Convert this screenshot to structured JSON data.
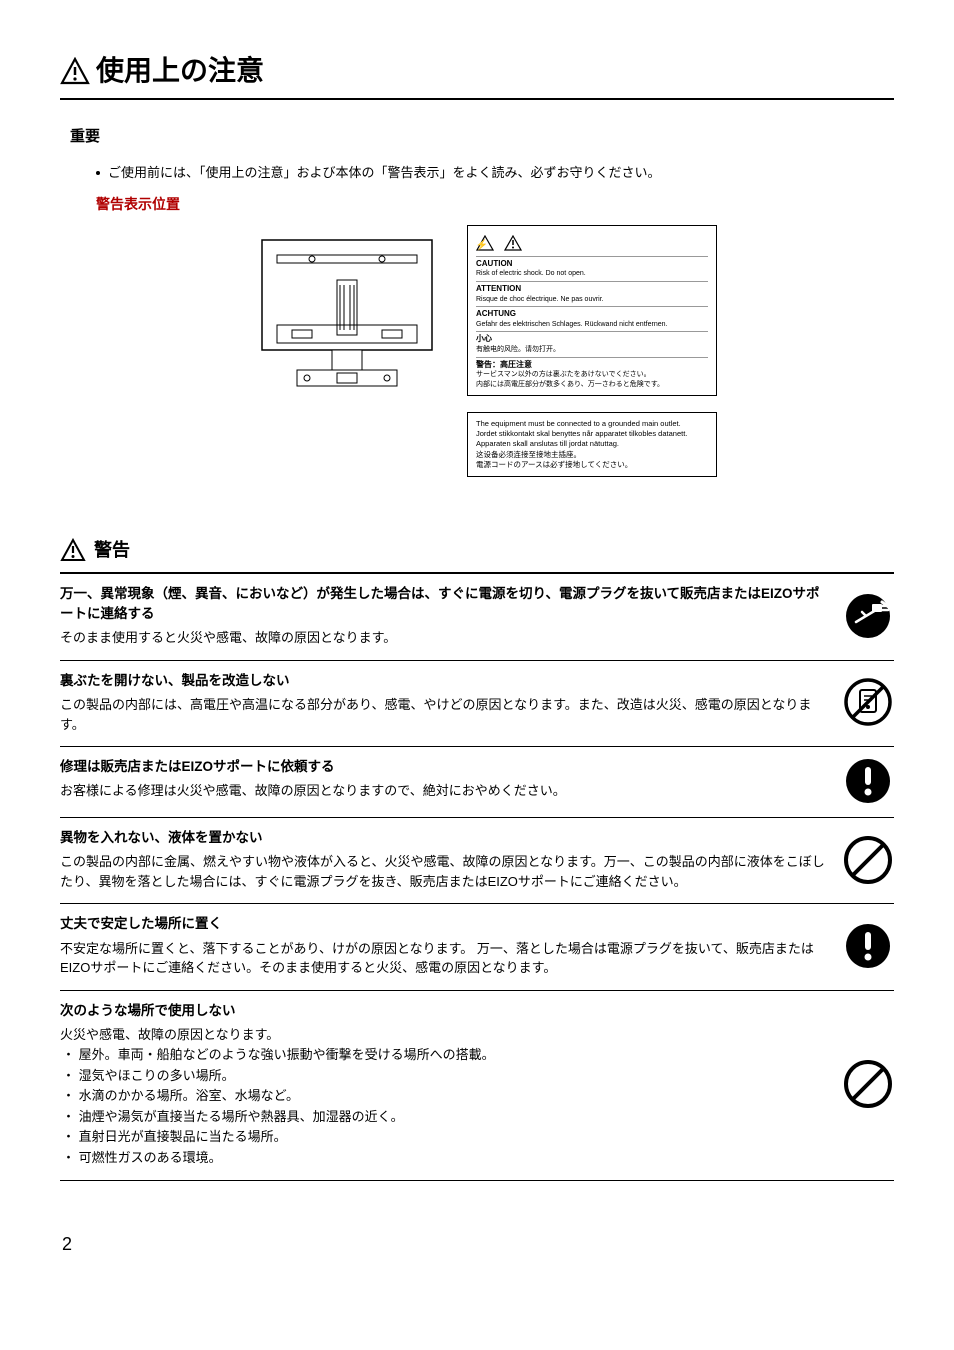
{
  "pageTitle": "使用上の注意",
  "importantHeading": "重要",
  "preReadLine": "ご使用前には、「使用上の注意」および本体の「警告表示」をよく読み、必ずお守りください。",
  "warningPosLabel": "警告表示位置",
  "cautionBox": {
    "caution": "CAUTION",
    "cautionSub": "Risk of electric shock. Do not open.",
    "attention": "ATTENTION",
    "attentionSub": "Risque de choc électrique. Ne pas ouvrir.",
    "achtung": "ACHTUNG",
    "achtungSub": "Gefahr des elektrischen Schlages. Rückwand nicht entfernen.",
    "zhHeading": "小心",
    "zhSub": "有触电的风险。请勿打开。",
    "jaHeading": "警告：高圧注意",
    "jaSub1": "サービスマン以外の方は裏ぶたをあけないでください。",
    "jaSub2": "内部には高電圧部分が数多くあり、万一さわると危険です。"
  },
  "groundBox": {
    "l1": "The equipment must be connected to a grounded main outlet.",
    "l2": "Jordet stikkontakt skal benyttes når apparatet tilkobles datanett.",
    "l3": "Apparaten skall anslutas till jordat nätuttag.",
    "l4": "这设备必须连接至接地主插座。",
    "l5": "電源コードのアースは必ず接地してください。"
  },
  "warningHeading": "警告",
  "items": [
    {
      "title": "万一、異常現象（煙、異音、においなど）が発生した場合は、すぐに電源を切り、電源プラグを抜いて販売店またはEIZOサポートに連絡する",
      "body": "そのまま使用すると火災や感電、故障の原因となります。",
      "icon": "plug"
    },
    {
      "title": "裏ぶたを開けない、製品を改造しない",
      "body": "この製品の内部には、高電圧や高温になる部分があり、感電、やけどの原因となります。また、改造は火災、感電の原因となります。",
      "icon": "no-disassemble"
    },
    {
      "title": "修理は販売店またはEIZOサポートに依頼する",
      "body": "お客様による修理は火災や感電、故障の原因となりますので、絶対におやめください。",
      "icon": "mandatory"
    },
    {
      "title": "異物を入れない、液体を置かない",
      "body": "この製品の内部に金属、燃えやすい物や液体が入ると、火災や感電、故障の原因となります。万一、この製品の内部に液体をこぼしたり、異物を落とした場合には、すぐに電源プラグを抜き、販売店またはEIZOサポートにご連絡ください。",
      "icon": "prohibit"
    },
    {
      "title": "丈夫で安定した場所に置く",
      "body": "不安定な場所に置くと、落下することがあり、けがの原因となります。\n万一、落とした場合は電源プラグを抜いて、販売店またはEIZOサポートにご連絡ください。そのまま使用すると火災、感電の原因となります。",
      "icon": "mandatory"
    },
    {
      "title": "次のような場所で使用しない",
      "body": "火災や感電、故障の原因となります。",
      "bullets": [
        "屋外。車両・船舶などのような強い振動や衝撃を受ける場所への搭載。",
        "湿気やほこりの多い場所。",
        "水滴のかかる場所。浴室、水場など。",
        "油煙や湯気が直接当たる場所や熱器具、加湿器の近く。",
        "直射日光が直接製品に当たる場所。",
        "可燃性ガスのある環境。"
      ],
      "icon": "prohibit"
    }
  ],
  "pageNumber": "2",
  "colors": {
    "accentRed": "#b00000",
    "black": "#000000"
  }
}
